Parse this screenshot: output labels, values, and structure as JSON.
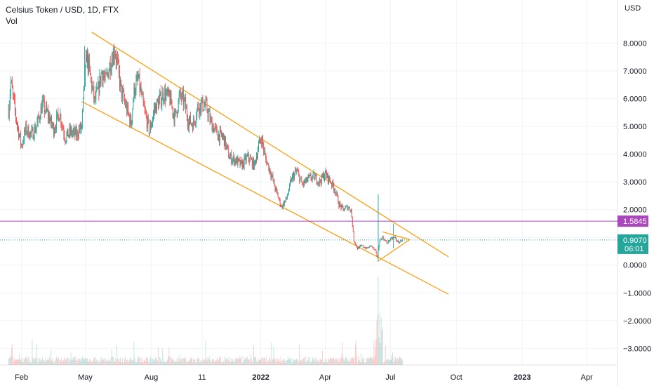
{
  "header": {
    "symbol_line": "Celsius Token / USD, 1D, FTX",
    "vol_label": "Vol"
  },
  "chart_data": {
    "type": "candlestick",
    "currency_label": "USD",
    "y_ticks": [
      "8.0000",
      "7.0000",
      "6.0000",
      "5.0000",
      "4.0000",
      "3.0000",
      "2.0000",
      "1.0000",
      "0.0000",
      "−1.0000",
      "−2.0000",
      "−3.0000"
    ],
    "y_tick_values": [
      8,
      7,
      6,
      5,
      4,
      3,
      2,
      1,
      0,
      -1,
      -2,
      -3
    ],
    "ylim": [
      -3.6,
      8.8
    ],
    "x_ticks": [
      {
        "label": "Feb",
        "date": "2021-02-01"
      },
      {
        "label": "May",
        "date": "2021-05-01"
      },
      {
        "label": "Aug",
        "date": "2021-08-01"
      },
      {
        "label": "11",
        "date": "2021-10-11"
      },
      {
        "label": "2022",
        "date": "2022-01-01"
      },
      {
        "label": "Apr",
        "date": "2022-04-01"
      },
      {
        "label": "Jul",
        "date": "2022-07-01"
      },
      {
        "label": "Oct",
        "date": "2022-10-01"
      },
      {
        "label": "2023",
        "date": "2023-01-01"
      },
      {
        "label": "Apr",
        "date": "2023-04-01"
      }
    ],
    "xlim": [
      "2021-01-02",
      "2023-05-14"
    ],
    "price_path": [
      [
        "2021-01-14",
        5.6
      ],
      [
        "2021-01-17",
        6.6
      ],
      [
        "2021-01-25",
        5.2
      ],
      [
        "2021-02-01",
        4.3
      ],
      [
        "2021-02-07",
        4.9
      ],
      [
        "2021-02-15",
        4.7
      ],
      [
        "2021-02-22",
        5.0
      ],
      [
        "2021-03-02",
        5.8
      ],
      [
        "2021-03-10",
        5.4
      ],
      [
        "2021-03-18",
        4.9
      ],
      [
        "2021-03-26",
        5.5
      ],
      [
        "2021-04-03",
        4.6
      ],
      [
        "2021-04-10",
        4.8
      ],
      [
        "2021-04-18",
        4.7
      ],
      [
        "2021-04-26",
        5.0
      ],
      [
        "2021-04-29",
        6.2
      ],
      [
        "2021-05-03",
        7.6
      ],
      [
        "2021-05-08",
        6.8
      ],
      [
        "2021-05-14",
        5.9
      ],
      [
        "2021-05-19",
        6.3
      ],
      [
        "2021-05-24",
        7.0
      ],
      [
        "2021-05-29",
        6.6
      ],
      [
        "2021-06-05",
        7.3
      ],
      [
        "2021-06-11",
        7.8
      ],
      [
        "2021-06-15",
        7.2
      ],
      [
        "2021-06-20",
        6.3
      ],
      [
        "2021-06-27",
        5.7
      ],
      [
        "2021-07-04",
        5.1
      ],
      [
        "2021-07-08",
        6.3
      ],
      [
        "2021-07-14",
        6.7
      ],
      [
        "2021-07-22",
        5.6
      ],
      [
        "2021-07-30",
        4.8
      ],
      [
        "2021-08-05",
        5.6
      ],
      [
        "2021-08-12",
        5.9
      ],
      [
        "2021-08-19",
        6.2
      ],
      [
        "2021-08-27",
        6.0
      ],
      [
        "2021-09-03",
        5.3
      ],
      [
        "2021-09-10",
        6.1
      ],
      [
        "2021-09-16",
        5.9
      ],
      [
        "2021-09-22",
        5.2
      ],
      [
        "2021-09-29",
        5.1
      ],
      [
        "2021-10-05",
        5.7
      ],
      [
        "2021-10-11",
        5.8
      ],
      [
        "2021-10-17",
        5.7
      ],
      [
        "2021-10-24",
        5.1
      ],
      [
        "2021-11-02",
        4.7
      ],
      [
        "2021-11-10",
        4.6
      ],
      [
        "2021-11-18",
        3.9
      ],
      [
        "2021-11-26",
        3.8
      ],
      [
        "2021-12-05",
        3.6
      ],
      [
        "2021-12-14",
        3.9
      ],
      [
        "2021-12-23",
        3.6
      ],
      [
        "2021-12-29",
        4.3
      ],
      [
        "2022-01-02",
        4.6
      ],
      [
        "2022-01-07",
        3.9
      ],
      [
        "2022-01-14",
        3.4
      ],
      [
        "2022-01-22",
        2.7
      ],
      [
        "2022-01-30",
        2.1
      ],
      [
        "2022-02-06",
        2.4
      ],
      [
        "2022-02-13",
        3.1
      ],
      [
        "2022-02-20",
        3.4
      ],
      [
        "2022-02-28",
        2.9
      ],
      [
        "2022-03-08",
        3.1
      ],
      [
        "2022-03-16",
        3.2
      ],
      [
        "2022-03-24",
        3.0
      ],
      [
        "2022-04-01",
        3.3
      ],
      [
        "2022-04-09",
        3.0
      ],
      [
        "2022-04-15",
        2.7
      ],
      [
        "2022-04-20",
        2.2
      ],
      [
        "2022-04-26",
        2.0
      ],
      [
        "2022-05-02",
        2.1
      ],
      [
        "2022-05-07",
        2.0
      ],
      [
        "2022-05-11",
        0.9
      ],
      [
        "2022-05-16",
        0.6
      ],
      [
        "2022-05-22",
        0.7
      ],
      [
        "2022-05-29",
        0.6
      ],
      [
        "2022-06-04",
        0.7
      ],
      [
        "2022-06-10",
        0.5
      ],
      [
        "2022-06-13",
        0.3
      ],
      [
        "2022-06-16",
        0.9
      ],
      [
        "2022-06-20",
        1.0
      ],
      [
        "2022-06-26",
        0.8
      ],
      [
        "2022-07-02",
        0.95
      ],
      [
        "2022-07-07",
        1.0
      ],
      [
        "2022-07-12",
        0.8
      ],
      [
        "2022-07-16",
        0.9
      ],
      [
        "2022-07-18",
        0.907
      ]
    ],
    "spikes": [
      {
        "date": "2022-06-14",
        "high": 2.55,
        "low": 0.12
      },
      {
        "date": "2022-07-05",
        "high": 1.5,
        "low": 0.6
      },
      {
        "date": "2021-04-30",
        "high": 7.9,
        "low": 6.3
      }
    ],
    "channel_upper": [
      [
        "2021-05-10",
        8.4
      ],
      [
        "2022-09-20",
        0.3
      ]
    ],
    "channel_lower": [
      [
        "2021-04-26",
        5.9
      ],
      [
        "2022-09-20",
        -1.05
      ]
    ],
    "triangle": {
      "top": [
        [
          "2022-06-20",
          1.2
        ],
        [
          "2022-07-28",
          0.92
        ]
      ],
      "bottom": [
        [
          "2022-06-14",
          0.15
        ],
        [
          "2022-07-28",
          0.92
        ]
      ]
    },
    "hline": {
      "value": 1.5845,
      "label": "1.5845",
      "color": "#ab47bc"
    },
    "last_price": {
      "value": 0.907,
      "label": "0.9070",
      "countdown": "06:01",
      "color": "#26a69a"
    },
    "colors": {
      "up": "#26a69a",
      "down": "#ef5350",
      "channel": "#ff9800",
      "grid": "#f0f3fa"
    }
  }
}
